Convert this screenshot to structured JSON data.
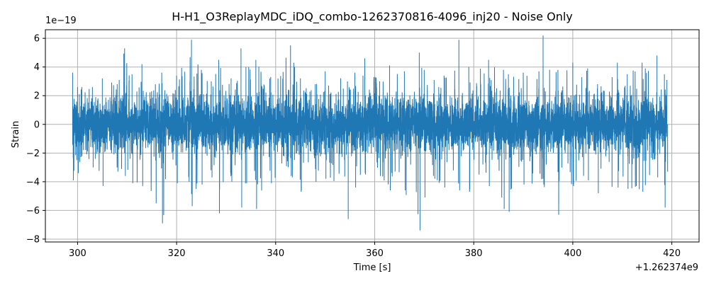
{
  "chart_data": {
    "type": "line",
    "title": "H-H1_O3ReplayMDC_iDQ_combo-1262370816-4096_inj20 - Noise Only",
    "xlabel": "Time [s]",
    "ylabel": "Strain",
    "x_offset_label": "+1.262374e9",
    "y_scale_label": "1e−19",
    "xlim": [
      293.5,
      425.5
    ],
    "ylim": [
      -8.2,
      6.6
    ],
    "x_ticks": [
      300,
      320,
      340,
      360,
      380,
      400,
      420
    ],
    "x_tick_labels": [
      "300",
      "320",
      "340",
      "360",
      "380",
      "400",
      "420"
    ],
    "y_ticks": [
      -8,
      -6,
      -4,
      -2,
      0,
      2,
      4,
      6
    ],
    "y_tick_labels": [
      "−8",
      "−6",
      "−4",
      "−2",
      "0",
      "2",
      "4",
      "6"
    ],
    "grid": true,
    "series": [
      {
        "color": "#1f77b4",
        "x_range": [
          299,
          419
        ],
        "envelope_x": [
          299,
          300,
          303,
          305,
          308,
          309.5,
          311,
          313,
          317,
          320,
          323,
          325,
          327,
          328.5,
          331,
          333,
          334,
          336,
          339,
          343,
          345,
          348,
          350,
          354.5,
          356,
          358,
          361,
          363,
          366,
          369,
          370,
          372,
          374,
          377,
          379,
          383,
          386,
          387,
          390,
          394,
          397,
          400,
          403,
          405,
          409,
          411,
          414,
          417,
          418.5,
          419
        ],
        "envelope_upper": [
          3.6,
          2.6,
          2.6,
          3.2,
          2.8,
          5.3,
          3.5,
          4.2,
          3.6,
          3.4,
          5.9,
          3.8,
          3.0,
          4.5,
          3.2,
          5.3,
          4.0,
          4.5,
          3.3,
          5.5,
          3.2,
          2.8,
          3.7,
          3.0,
          3.6,
          4.6,
          3.0,
          4.1,
          3.7,
          5.0,
          3.8,
          3.1,
          3.4,
          5.9,
          4.0,
          4.5,
          3.8,
          3.5,
          3.6,
          6.2,
          3.8,
          4.3,
          3.9,
          2.8,
          4.3,
          3.5,
          4.3,
          4.8,
          3.5,
          3.1
        ],
        "envelope_lower": [
          -3.9,
          -3.4,
          -3.0,
          -4.3,
          -3.3,
          -3.6,
          -4.1,
          -4.3,
          -6.9,
          -4.1,
          -5.7,
          -4.2,
          -3.7,
          -6.2,
          -4.0,
          -5.8,
          -4.1,
          -5.9,
          -4.1,
          -3.6,
          -4.7,
          -4.0,
          -3.8,
          -6.6,
          -4.4,
          -3.5,
          -3.6,
          -4.6,
          -4.6,
          -7.4,
          -5.1,
          -3.8,
          -4.4,
          -4.6,
          -4.7,
          -4.3,
          -5.9,
          -6.1,
          -4.2,
          -4.2,
          -6.3,
          -4.3,
          -3.9,
          -4.8,
          -4.4,
          -4.5,
          -4.7,
          -3.7,
          -5.8,
          -3.3
        ],
        "rms": 0.85
      }
    ]
  }
}
